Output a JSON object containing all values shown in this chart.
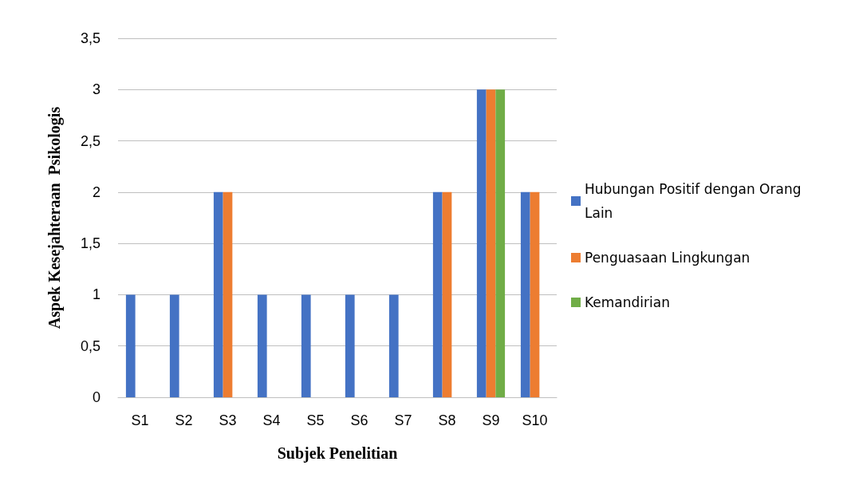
{
  "chart_data": {
    "type": "bar",
    "xlabel": "Subjek Penelitian",
    "ylabel": "Aspek Kesejahteraan  Psikologis",
    "categories": [
      "S1",
      "S2",
      "S3",
      "S4",
      "S5",
      "S6",
      "S7",
      "S8",
      "S9",
      "S10"
    ],
    "series": [
      {
        "name": "Hubungan Positif dengan Orang Lain",
        "color": "#4472c4",
        "values": [
          1,
          1,
          2,
          1,
          1,
          1,
          1,
          2,
          3,
          2
        ]
      },
      {
        "name": "Penguasaan Lingkungan",
        "color": "#ed7d31",
        "values": [
          0,
          0,
          2,
          0,
          0,
          0,
          0,
          2,
          3,
          2
        ]
      },
      {
        "name": "Kemandirian",
        "color": "#70ad47",
        "values": [
          0,
          0,
          0,
          0,
          0,
          0,
          0,
          0,
          3,
          0
        ]
      }
    ],
    "ylim": [
      0,
      3.5
    ],
    "yticks": [
      0,
      {
        "value": 0.5,
        "label": "0,5"
      },
      1,
      {
        "value": 1.5,
        "label": "1,5"
      },
      2,
      {
        "value": 2.5,
        "label": "2,5"
      },
      3,
      {
        "value": 3.5,
        "label": "3,5"
      }
    ],
    "grid": "y",
    "legend": "right"
  }
}
